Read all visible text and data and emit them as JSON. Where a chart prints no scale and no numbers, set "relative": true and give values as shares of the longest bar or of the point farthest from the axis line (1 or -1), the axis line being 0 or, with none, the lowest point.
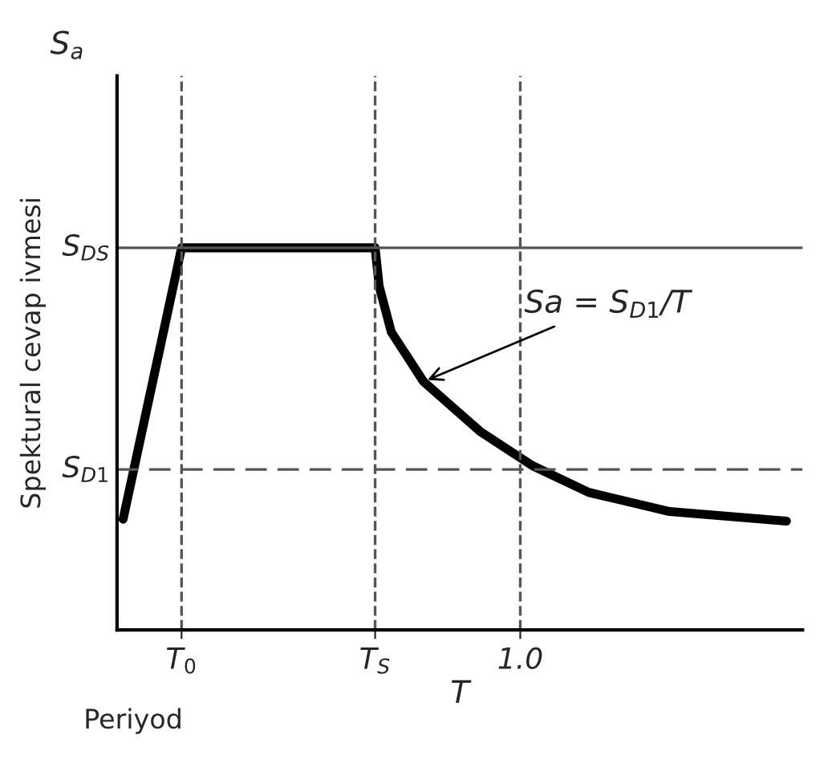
{
  "chart_data": {
    "type": "line",
    "relative": true,
    "xlabel": "T",
    "ylabel": "Spektural cevap ivmesi",
    "x": [
      0.015,
      0.16,
      0.64,
      0.65,
      0.68,
      0.76,
      0.9,
      1.03,
      1.17,
      1.37,
      1.66
    ],
    "series": [
      {
        "color": "#000000",
        "values": [
          0.29,
          1.0,
          1.0,
          0.9,
          0.78,
          0.65,
          0.52,
          0.43,
          0.36,
          0.31,
          0.285
        ]
      }
    ],
    "xlim": [
      0,
      1.7
    ],
    "xticks": [
      {
        "value": 0.16,
        "label": "T$_{0}$"
      },
      {
        "value": 0.64,
        "label": "T$_{S}$"
      },
      {
        "value": 1.0,
        "label": "1.0"
      }
    ],
    "ref_lines": [
      {
        "axis": "y",
        "value": 1.0,
        "label": "S$_{DS}$",
        "line_style": "solid",
        "color": "#555555"
      },
      {
        "axis": "y",
        "value": 0.42,
        "label": "S$_{D1}$",
        "line_style": "dashed",
        "color": "#555555"
      },
      {
        "axis": "x",
        "value": 0.16,
        "line_style": "dashed",
        "color": "#555555"
      },
      {
        "axis": "x",
        "value": 0.64,
        "line_style": "dashed",
        "color": "#555555"
      },
      {
        "axis": "x",
        "value": 1.0,
        "line_style": "dashed",
        "color": "#555555"
      }
    ],
    "annotations": [
      {
        "text": "Sa = S$_{D1}$/T",
        "x": 0.76,
        "y": 0.65
      },
      "S$_{a}$",
      "Periyod"
    ],
    "grid": false,
    "line_style": "solid",
    "marker": "none"
  }
}
